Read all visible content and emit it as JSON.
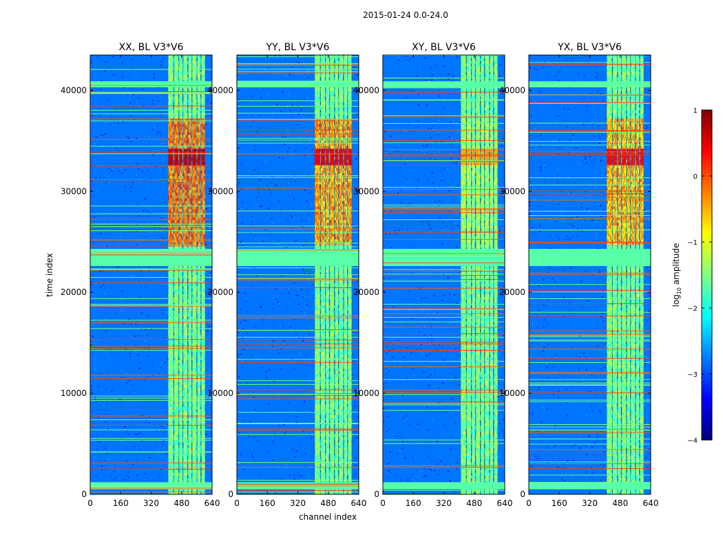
{
  "chart_data": {
    "type": "heatmap",
    "suptitle": "2015-01-24 0.0-24.0",
    "xlabel": "channel index",
    "ylabel": "time index",
    "xlim": [
      0,
      640
    ],
    "ylim": [
      0,
      43500
    ],
    "xticks": [
      0,
      160,
      320,
      480,
      640
    ],
    "yticks": [
      0,
      10000,
      20000,
      30000,
      40000
    ],
    "colorbar": {
      "label": "log10 amplitude",
      "label_base": "log",
      "label_sub": "10",
      "label_rest": " amplitude",
      "range": [
        -4,
        1
      ],
      "ticks": [
        1,
        0,
        -1,
        -2,
        -3,
        -4
      ],
      "tick_labels": [
        "1",
        "0",
        "−1",
        "−2",
        "−3",
        "−4"
      ],
      "colormap": "jet",
      "colors": [
        "#00007f",
        "#0000ff",
        "#007fff",
        "#00ffff",
        "#7fff7f",
        "#ffff00",
        "#ff7f00",
        "#ff0000",
        "#7f0000"
      ]
    },
    "panels": [
      {
        "title": "XX, BL V3*V6",
        "signal_band_channels": [
          410,
          600
        ],
        "strong_rfi_time": [
          32500,
          34000
        ],
        "peak_log10_amplitude": 0.5
      },
      {
        "title": "YY, BL V3*V6",
        "signal_band_channels": [
          410,
          600
        ],
        "strong_rfi_time": [
          32500,
          34000
        ],
        "peak_log10_amplitude": 0.3
      },
      {
        "title": "XY, BL V3*V6",
        "signal_band_channels": [
          410,
          600
        ],
        "strong_rfi_time": [
          32500,
          34000
        ],
        "peak_log10_amplitude": -0.6
      },
      {
        "title": "YX, BL V3*V6",
        "signal_band_channels": [
          410,
          600
        ],
        "strong_rfi_time": [
          32500,
          34000
        ],
        "peak_log10_amplitude": 0.2
      }
    ],
    "flagged_time_ranges": [
      [
        500,
        1200
      ],
      [
        22600,
        24300
      ],
      [
        40300,
        40900
      ]
    ]
  }
}
